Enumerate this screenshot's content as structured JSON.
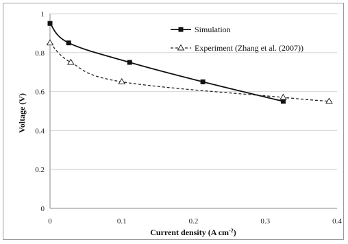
{
  "chart_data": {
    "type": "line",
    "xlabel": "Current density (A cm",
    "xlabel_sup": "-2",
    "xlabel_end": ")",
    "ylabel": "Voltage (V)",
    "xlim": [
      0,
      0.4
    ],
    "ylim": [
      0,
      1
    ],
    "x_ticks": [
      "0",
      "0.1",
      "0.2",
      "0.3",
      "0.4"
    ],
    "y_ticks": [
      "0",
      "0.2",
      "0.4",
      "0.6",
      "0.8",
      "1"
    ],
    "grid": "horizontal",
    "legend_position": "top-right",
    "series": [
      {
        "name": "Simulation",
        "style": "solid",
        "marker": "square",
        "color": "#111111",
        "points": [
          {
            "x": 0,
            "y": 0.95
          },
          {
            "x": 0.026,
            "y": 0.85
          },
          {
            "x": 0.111,
            "y": 0.75
          },
          {
            "x": 0.213,
            "y": 0.65
          },
          {
            "x": 0.325,
            "y": 0.55
          }
        ]
      },
      {
        "name": "Experiment (Zhang et al. (2007))",
        "style": "dashed",
        "marker": "triangle",
        "color": "#222222",
        "points": [
          {
            "x": 0,
            "y": 0.85
          },
          {
            "x": 0.029,
            "y": 0.75
          },
          {
            "x": 0.1,
            "y": 0.65
          },
          {
            "x": 0.325,
            "y": 0.57
          },
          {
            "x": 0.389,
            "y": 0.55
          }
        ]
      }
    ]
  }
}
